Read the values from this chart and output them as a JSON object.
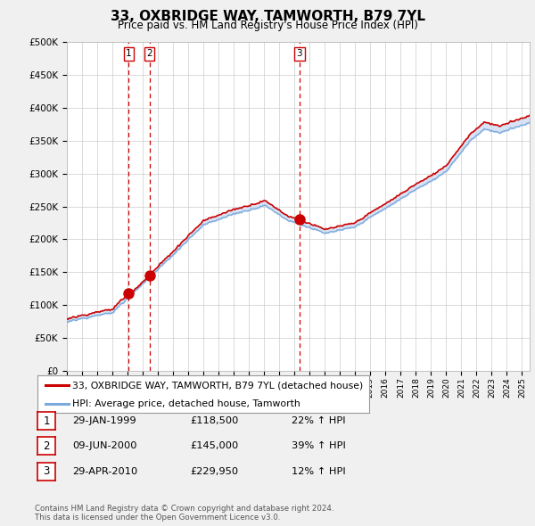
{
  "title": "33, OXBRIDGE WAY, TAMWORTH, B79 7YL",
  "subtitle": "Price paid vs. HM Land Registry's House Price Index (HPI)",
  "ylabel_ticks": [
    "£0",
    "£50K",
    "£100K",
    "£150K",
    "£200K",
    "£250K",
    "£300K",
    "£350K",
    "£400K",
    "£450K",
    "£500K"
  ],
  "ytick_values": [
    0,
    50000,
    100000,
    150000,
    200000,
    250000,
    300000,
    350000,
    400000,
    450000,
    500000
  ],
  "hpi_color": "#7aaadd",
  "price_color": "#cc0000",
  "fill_color": "#c8d8ee",
  "marker_color": "#cc0000",
  "vline_color": "#cc0000",
  "background_color": "#f0f0f0",
  "plot_bg_color": "#ffffff",
  "grid_color": "#cccccc",
  "transactions": [
    {
      "label": "1",
      "date": 1999.08,
      "price": 118500
    },
    {
      "label": "2",
      "date": 2000.44,
      "price": 145000
    },
    {
      "label": "3",
      "date": 2010.33,
      "price": 229950
    }
  ],
  "legend_entries": [
    "33, OXBRIDGE WAY, TAMWORTH, B79 7YL (detached house)",
    "HPI: Average price, detached house, Tamworth"
  ],
  "table_rows": [
    {
      "num": "1",
      "date": "29-JAN-1999",
      "price": "£118,500",
      "change": "22% ↑ HPI"
    },
    {
      "num": "2",
      "date": "09-JUN-2000",
      "price": "£145,000",
      "change": "39% ↑ HPI"
    },
    {
      "num": "3",
      "date": "29-APR-2010",
      "price": "£229,950",
      "change": "12% ↑ HPI"
    }
  ],
  "footnote": "Contains HM Land Registry data © Crown copyright and database right 2024.\nThis data is licensed under the Open Government Licence v3.0.",
  "xmin": 1995.0,
  "xmax": 2025.5,
  "ymin": 0,
  "ymax": 500000
}
